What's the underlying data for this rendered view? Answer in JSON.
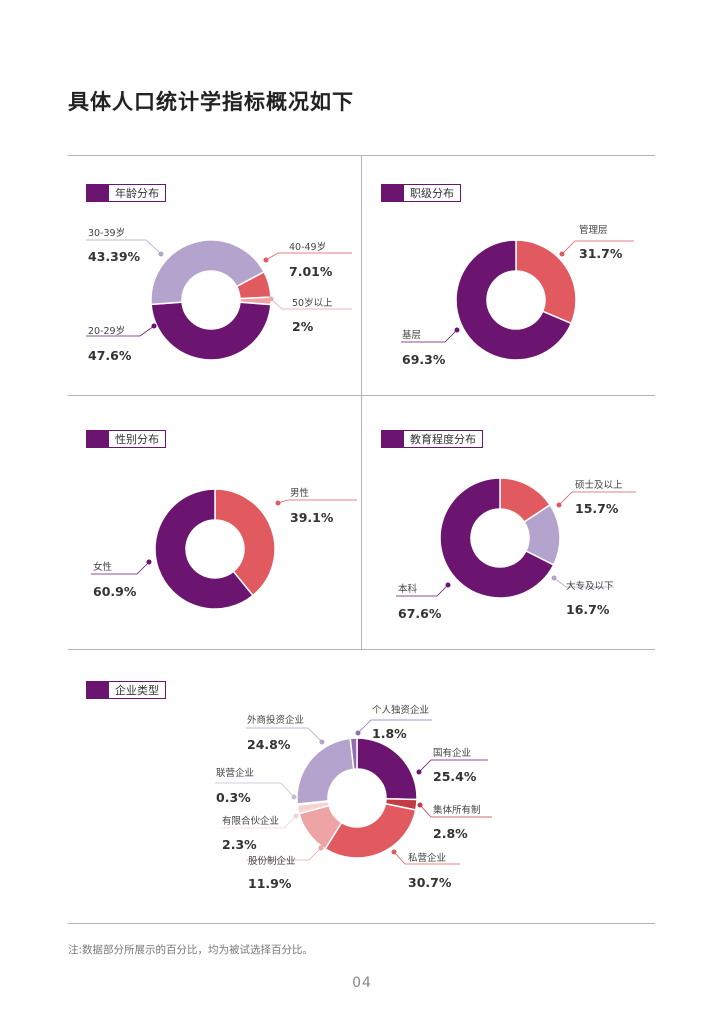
{
  "page_title": "具体人口统计学指标概况如下",
  "footnote": "注:数据部分所展示的百分比，均为被试选择百分比。",
  "page_number": "04",
  "colors": {
    "dark_purple": "#6b1470",
    "light_purple": "#b3a3cd",
    "red": "#e05a5f",
    "pink": "#eea3a5",
    "light_pink": "#f6d2d3",
    "dark_red": "#c33c44",
    "grid": "#b9b4bc"
  },
  "chart_data": [
    {
      "type": "pie",
      "title": "年龄分布",
      "slices": [
        {
          "label": "40-49岁",
          "value": 7.01,
          "display": "7.01%"
        },
        {
          "label": "50岁以上",
          "value": 2,
          "display": "2%"
        },
        {
          "label": "20-29岁",
          "value": 47.6,
          "display": "47.6%"
        },
        {
          "label": "30-39岁",
          "value": 43.39,
          "display": "43.39%"
        }
      ]
    },
    {
      "type": "pie",
      "title": "职级分布",
      "slices": [
        {
          "label": "管理层",
          "value": 31.7,
          "display": "31.7%"
        },
        {
          "label": "基层",
          "value": 69.3,
          "display": "69.3%"
        }
      ]
    },
    {
      "type": "pie",
      "title": "性别分布",
      "slices": [
        {
          "label": "男性",
          "value": 39.1,
          "display": "39.1%"
        },
        {
          "label": "女性",
          "value": 60.9,
          "display": "60.9%"
        }
      ]
    },
    {
      "type": "pie",
      "title": "教育程度分布",
      "slices": [
        {
          "label": "硕士及以上",
          "value": 15.7,
          "display": "15.7%"
        },
        {
          "label": "大专及以下",
          "value": 16.7,
          "display": "16.7%"
        },
        {
          "label": "本科",
          "value": 67.6,
          "display": "67.6%"
        }
      ]
    },
    {
      "type": "pie",
      "title": "企业类型",
      "slices": [
        {
          "label": "国有企业",
          "value": 25.4,
          "display": "25.4%"
        },
        {
          "label": "集体所有制",
          "value": 2.8,
          "display": "2.8%"
        },
        {
          "label": "私营企业",
          "value": 30.7,
          "display": "30.7%"
        },
        {
          "label": "股份制企业",
          "value": 11.9,
          "display": "11.9%"
        },
        {
          "label": "有限合伙企业",
          "value": 2.3,
          "display": "2.3%"
        },
        {
          "label": "联营企业",
          "value": 0.3,
          "display": "0.3%"
        },
        {
          "label": "外商投资企业",
          "value": 24.8,
          "display": "24.8%"
        },
        {
          "label": "个人独资企业",
          "value": 1.8,
          "display": "1.8%"
        }
      ]
    }
  ]
}
